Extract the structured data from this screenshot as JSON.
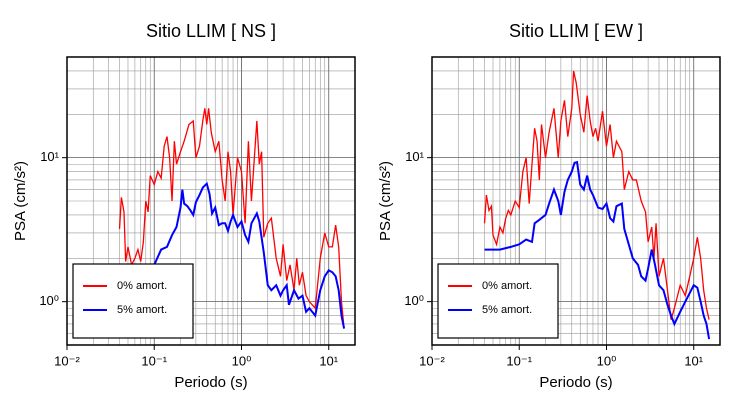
{
  "chart_data": [
    {
      "type": "line",
      "title": "Sitio LLIM [ NS ]",
      "x_label": "Periodo (s)",
      "y_label": "PSA (cm/s²)",
      "xscale": "log",
      "yscale": "log",
      "grid": true,
      "minor_grid": true,
      "legend": "lower left",
      "xlim": [
        0.01,
        20
      ],
      "ylim": [
        0.5,
        50
      ],
      "xticks": [
        {
          "value": 0.01,
          "label": "10⁻²"
        },
        {
          "value": 0.1,
          "label": "10⁻¹"
        },
        {
          "value": 1,
          "label": "10⁰"
        },
        {
          "value": 10,
          "label": "10¹"
        }
      ],
      "yticks": [
        {
          "value": 1,
          "label": "10⁰"
        },
        {
          "value": 10,
          "label": "10¹"
        }
      ],
      "series": [
        {
          "name": "0% amort.",
          "color": "#ff0000",
          "x": [
            0.04,
            0.042,
            0.045,
            0.047,
            0.05,
            0.055,
            0.06,
            0.065,
            0.07,
            0.075,
            0.08,
            0.085,
            0.09,
            0.1,
            0.11,
            0.12,
            0.13,
            0.14,
            0.15,
            0.16,
            0.17,
            0.18,
            0.2,
            0.22,
            0.25,
            0.28,
            0.3,
            0.33,
            0.36,
            0.38,
            0.4,
            0.42,
            0.45,
            0.5,
            0.55,
            0.6,
            0.65,
            0.7,
            0.75,
            0.8,
            0.9,
            1.0,
            1.1,
            1.2,
            1.3,
            1.5,
            1.6,
            1.7,
            1.8,
            2.0,
            2.2,
            2.5,
            2.8,
            3.0,
            3.3,
            3.6,
            4.0,
            4.3,
            4.6,
            5.0,
            5.5,
            6.0,
            7.0,
            8.0,
            9.0,
            10,
            11,
            12,
            13,
            14,
            15
          ],
          "values": [
            3.2,
            5.3,
            4.2,
            1.9,
            2.4,
            1.8,
            2.0,
            2.3,
            1.9,
            2.6,
            5.0,
            4.2,
            7.5,
            6.5,
            8.0,
            7.2,
            12,
            14,
            10,
            5.0,
            13,
            9,
            11,
            13,
            17,
            18,
            10,
            12,
            18,
            22,
            17,
            22,
            15,
            11,
            13,
            7,
            5,
            11,
            8,
            4,
            10,
            8,
            3.5,
            13,
            5,
            18,
            9,
            11,
            2.8,
            3.5,
            3.8,
            2.0,
            1.5,
            2.5,
            1.4,
            1.8,
            1.2,
            2.0,
            1.3,
            1.6,
            1.1,
            1.0,
            0.9,
            2.0,
            3.0,
            2.4,
            2.4,
            3.4,
            2.4,
            1.0,
            0.65
          ]
        },
        {
          "name": "5% amort.",
          "color": "#0000ff",
          "x": [
            0.04,
            0.06,
            0.08,
            0.1,
            0.12,
            0.14,
            0.16,
            0.18,
            0.2,
            0.21,
            0.22,
            0.24,
            0.26,
            0.28,
            0.3,
            0.33,
            0.36,
            0.4,
            0.43,
            0.46,
            0.5,
            0.55,
            0.6,
            0.65,
            0.7,
            0.75,
            0.8,
            0.9,
            1.0,
            1.1,
            1.2,
            1.3,
            1.5,
            1.6,
            1.8,
            2.0,
            2.2,
            2.5,
            2.8,
            3.0,
            3.3,
            3.5,
            4.0,
            4.5,
            5.0,
            5.5,
            6.0,
            7.0,
            8.0,
            9.0,
            10,
            11,
            12,
            13,
            14,
            15
          ],
          "values": [
            1.5,
            1.6,
            1.7,
            1.8,
            2.3,
            2.4,
            2.9,
            3.3,
            4.5,
            6.0,
            4.8,
            4.6,
            4.3,
            4.0,
            4.9,
            5.5,
            6.2,
            6.6,
            5.6,
            4.1,
            4.5,
            3.4,
            3.5,
            3.5,
            3.1,
            3.6,
            4.0,
            3.3,
            3.6,
            2.9,
            2.6,
            3.5,
            4.1,
            3.6,
            2.2,
            1.3,
            1.2,
            1.3,
            1.1,
            1.2,
            1.3,
            0.95,
            1.2,
            1.05,
            1.1,
            0.85,
            0.9,
            0.8,
            1.2,
            1.5,
            1.65,
            1.6,
            1.5,
            1.2,
            0.8,
            0.65
          ]
        }
      ]
    },
    {
      "type": "line",
      "title": "Sitio LLIM [ EW ]",
      "x_label": "Periodo (s)",
      "y_label": "PSA (cm/s²)",
      "xscale": "log",
      "yscale": "log",
      "grid": true,
      "minor_grid": true,
      "legend": "lower left",
      "xlim": [
        0.01,
        20
      ],
      "ylim": [
        0.5,
        50
      ],
      "xticks": [
        {
          "value": 0.01,
          "label": "10⁻²"
        },
        {
          "value": 0.1,
          "label": "10⁻¹"
        },
        {
          "value": 1,
          "label": "10⁰"
        },
        {
          "value": 10,
          "label": "10¹"
        }
      ],
      "yticks": [
        {
          "value": 1,
          "label": "10⁰"
        },
        {
          "value": 10,
          "label": "10¹"
        }
      ],
      "series": [
        {
          "name": "0% amort.",
          "color": "#ff0000",
          "x": [
            0.04,
            0.042,
            0.045,
            0.048,
            0.05,
            0.055,
            0.06,
            0.065,
            0.07,
            0.075,
            0.08,
            0.09,
            0.1,
            0.11,
            0.12,
            0.13,
            0.14,
            0.15,
            0.16,
            0.17,
            0.18,
            0.2,
            0.22,
            0.25,
            0.28,
            0.3,
            0.33,
            0.36,
            0.4,
            0.42,
            0.45,
            0.5,
            0.55,
            0.6,
            0.65,
            0.7,
            0.75,
            0.8,
            0.9,
            1.0,
            1.1,
            1.2,
            1.3,
            1.5,
            1.6,
            1.8,
            2.0,
            2.2,
            2.5,
            2.8,
            3.0,
            3.3,
            3.5,
            3.7,
            4.0,
            4.5,
            5.0,
            5.5,
            6.0,
            7.0,
            8.0,
            9.0,
            10,
            11,
            12,
            13,
            14,
            15
          ],
          "values": [
            3.5,
            5.5,
            4.3,
            4.6,
            2.9,
            2.5,
            3.3,
            3.0,
            3.8,
            4.3,
            4.0,
            5.0,
            4.5,
            8,
            10,
            4.8,
            9,
            16,
            13,
            7,
            17,
            10,
            15,
            22,
            10,
            18,
            25,
            14,
            22,
            40,
            33,
            20,
            15,
            27,
            18,
            14,
            16,
            13,
            21,
            12,
            17,
            10,
            13,
            11,
            6,
            8,
            7,
            7,
            5,
            4.2,
            2.6,
            3.3,
            2.0,
            3.5,
            1.5,
            2.0,
            1.2,
            0.75,
            0.9,
            1.3,
            1.1,
            1.5,
            2.0,
            2.8,
            2.0,
            1.2,
            0.9,
            0.75
          ]
        },
        {
          "name": "5% amort.",
          "color": "#0000ff",
          "x": [
            0.04,
            0.06,
            0.08,
            0.1,
            0.12,
            0.14,
            0.15,
            0.17,
            0.2,
            0.22,
            0.25,
            0.28,
            0.3,
            0.33,
            0.36,
            0.4,
            0.43,
            0.46,
            0.5,
            0.55,
            0.6,
            0.65,
            0.7,
            0.8,
            0.9,
            1.0,
            1.1,
            1.2,
            1.3,
            1.5,
            1.6,
            1.8,
            2.0,
            2.3,
            2.5,
            2.8,
            3.0,
            3.3,
            3.6,
            4.0,
            4.5,
            5.0,
            5.5,
            6.0,
            7.0,
            8.0,
            9.0,
            10,
            11,
            12,
            13,
            14,
            15
          ],
          "values": [
            2.3,
            2.3,
            2.4,
            2.5,
            2.7,
            2.6,
            3.5,
            3.7,
            4.0,
            4.8,
            6.0,
            5.0,
            4.0,
            5.8,
            7.0,
            8.0,
            9.2,
            9.3,
            6.5,
            6.0,
            7.5,
            6.0,
            5.5,
            4.5,
            4.4,
            4.8,
            3.8,
            3.6,
            4.6,
            4.8,
            3.2,
            2.5,
            2.0,
            1.8,
            1.5,
            1.4,
            1.7,
            2.3,
            1.8,
            1.3,
            1.2,
            0.95,
            0.8,
            0.7,
            0.85,
            1.0,
            1.15,
            1.3,
            1.25,
            1.0,
            0.8,
            0.7,
            0.55
          ]
        }
      ]
    }
  ]
}
